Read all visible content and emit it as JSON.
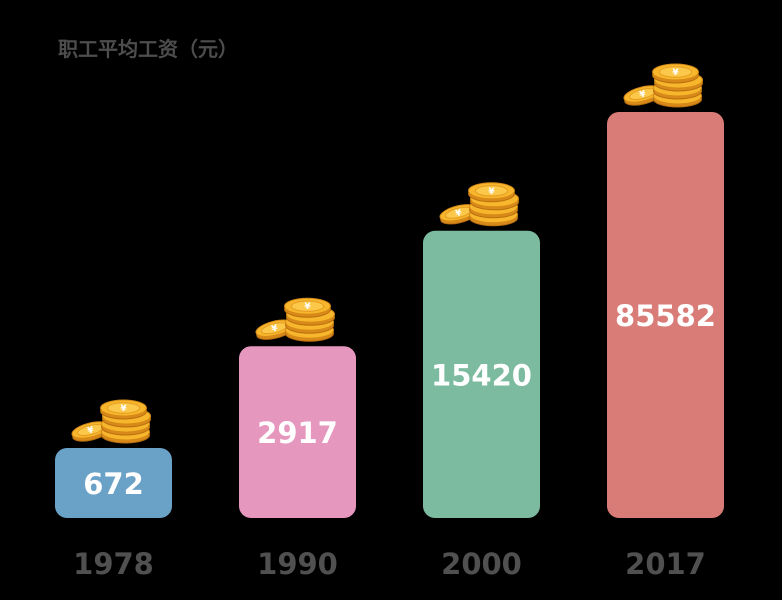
{
  "chart_data": {
    "type": "bar",
    "title": "职工平均工资（元）",
    "categories": [
      "1978",
      "1990",
      "2000",
      "2017"
    ],
    "values": [
      672,
      2917,
      15420,
      85582
    ],
    "colors": [
      "#6aa1c6",
      "#e597bd",
      "#7cbb9f",
      "#d97b77"
    ],
    "xlabel": "",
    "ylabel": "",
    "grid": false,
    "legend": "none",
    "data_labels": "inside-bar"
  },
  "icons": {
    "bar_topper": "coin-stack-icon",
    "coin_symbol": "¥"
  }
}
